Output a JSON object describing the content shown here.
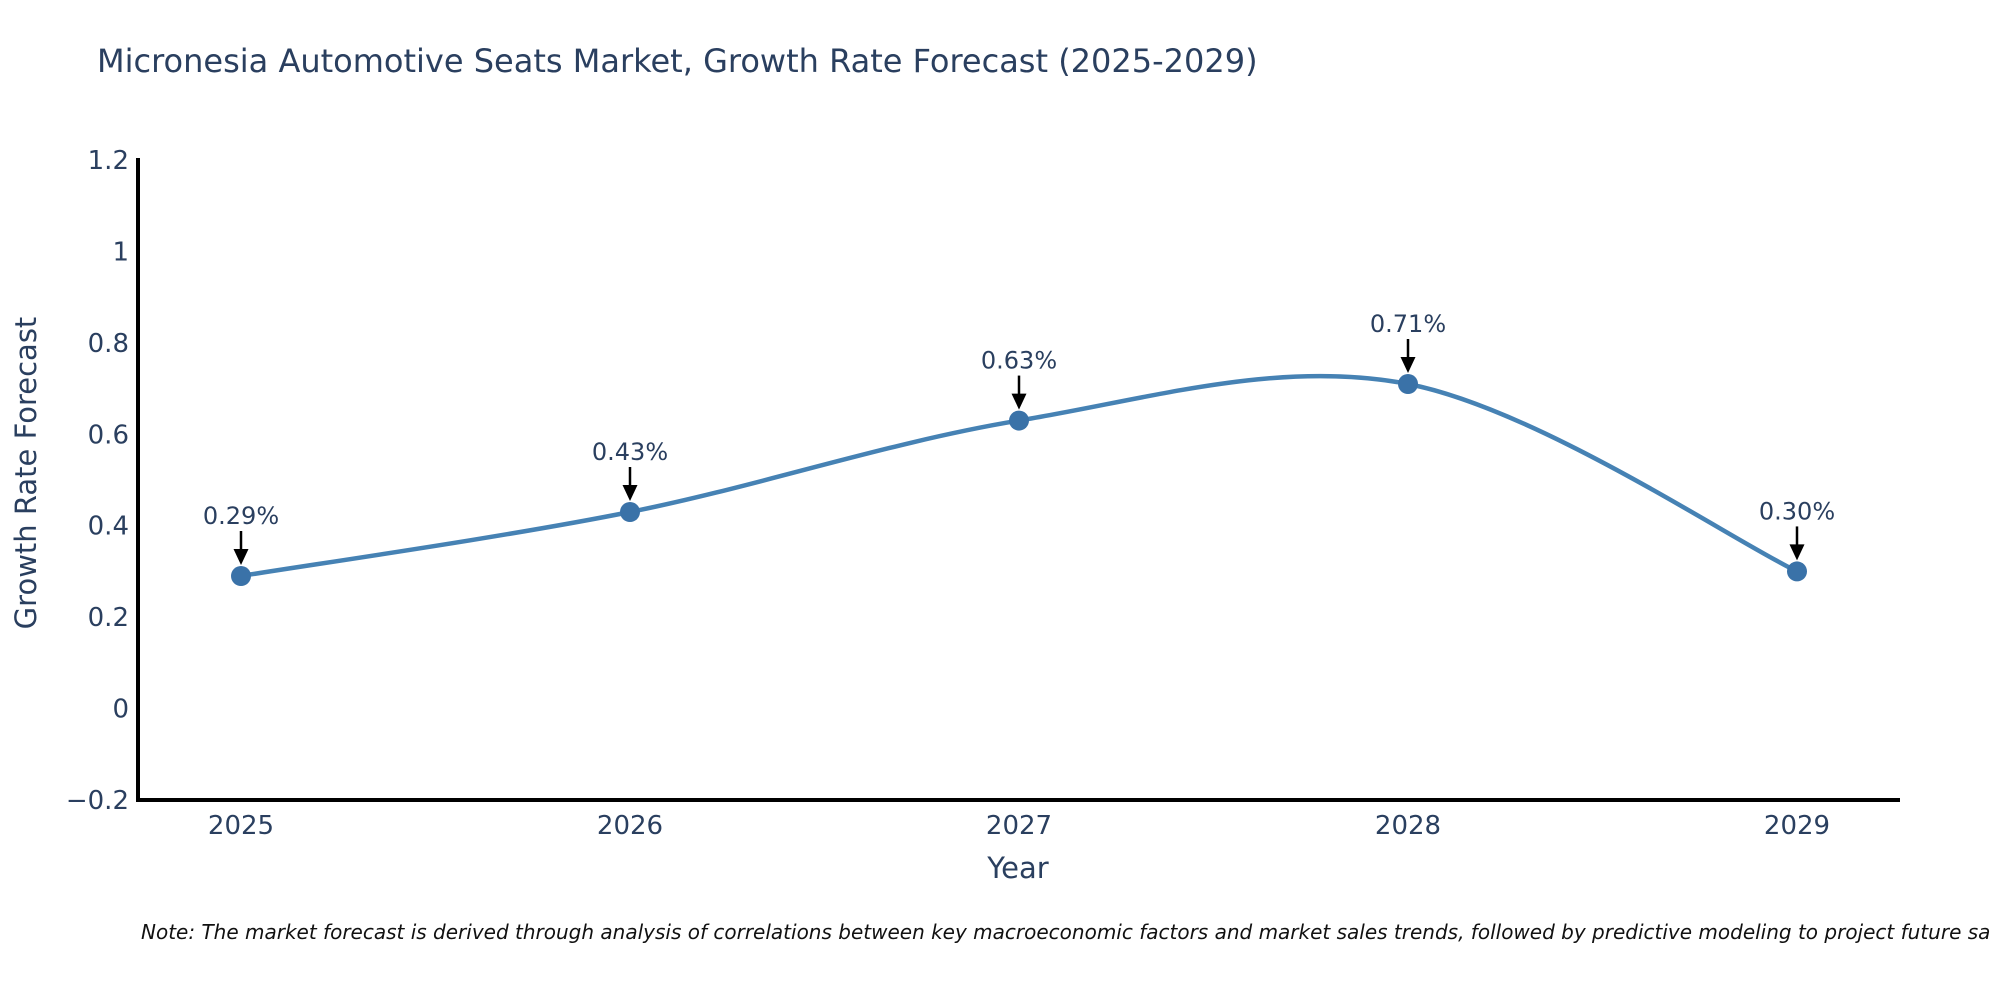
{
  "title": "Micronesia Automotive Seats Market, Growth Rate Forecast (2025-2029)",
  "note": "Note: The market forecast is derived through analysis of correlations between key macroeconomic factors and market sales trends, followed by predictive modeling to project future sa",
  "chart_data": {
    "type": "line",
    "title": "Micronesia Automotive Seats Market, Growth Rate Forecast (2025-2029)",
    "xlabel": "Year",
    "ylabel": "Growth Rate Forecast",
    "categories": [
      2025,
      2026,
      2027,
      2028,
      2029
    ],
    "series": [
      {
        "name": "Growth Rate Forecast",
        "values": [
          0.29,
          0.43,
          0.63,
          0.71,
          0.3
        ],
        "point_labels": [
          "0.29%",
          "0.43%",
          "0.63%",
          "0.71%",
          "0.30%"
        ]
      }
    ],
    "line_shape": "spline",
    "markers": true,
    "annotations_arrows": true,
    "ylim": [
      -0.2,
      1.2
    ],
    "yticks": {
      "values": [
        -0.2,
        0,
        0.2,
        0.4,
        0.6,
        0.8,
        1,
        1.2
      ],
      "labels": [
        "−0.2",
        "0",
        "0.2",
        "0.4",
        "0.6",
        "0.8",
        "1",
        "1.2"
      ]
    },
    "xticks": {
      "labels": [
        "2025",
        "2026",
        "2027",
        "2028",
        "2029"
      ]
    },
    "grid": false,
    "legend": "none",
    "colors": {
      "line": "#4682b4",
      "marker": "#3a72a8",
      "arrow": "#000000",
      "axis_line": "#000000",
      "chart_text": "#2a3f5f",
      "note_text": "#111111",
      "background": "#ffffff"
    }
  }
}
